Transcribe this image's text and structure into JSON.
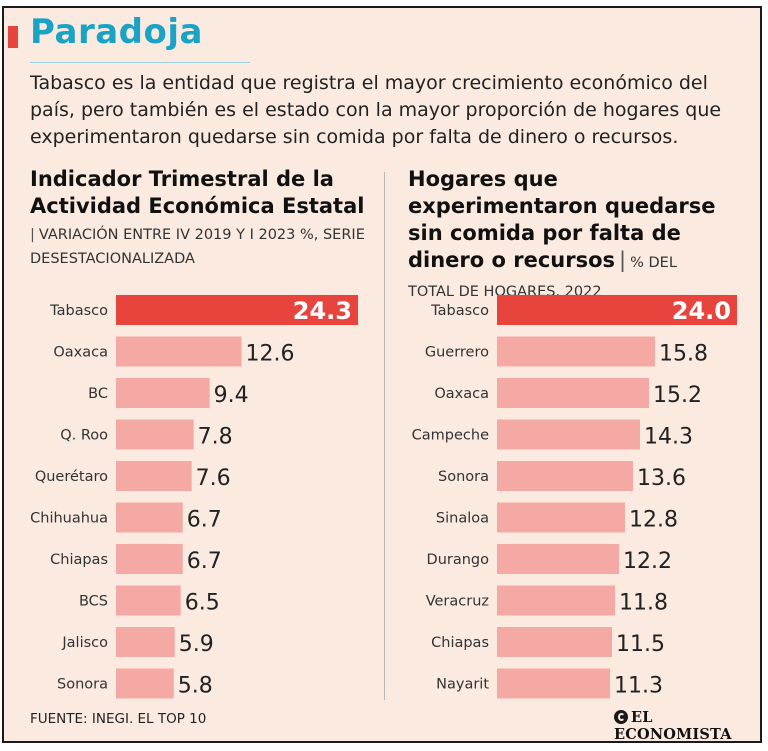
{
  "title": "Paradoja",
  "intro": "Tabasco es la entidad que registra el mayor crecimiento económico del país, pero también es el estado con la mayor proporción de hogares que experimentaron quedarse sin comida por falta de dinero o recursos.",
  "left": {
    "title": "Indicador Trimestral de la Actividad Económica Estatal",
    "subtitle": "Variación entre IV 2019 y I 2023 %, serie desestacionalizada"
  },
  "right": {
    "title": "Hogares que experimentaron quedarse sin comida por falta de dinero o recursos",
    "subtitle_inline": "% del",
    "subtitle": "total de hogares, 2022"
  },
  "footer": "FUENTE: INEGI. EL TOP 10",
  "brand": "EL ECONOMISTA",
  "colors": {
    "highlight": "#e8443e",
    "bar": "#f4a9a4",
    "title": "#1ba3c6"
  },
  "chart_data": [
    {
      "type": "bar",
      "orientation": "horizontal",
      "title": "Indicador Trimestral de la Actividad Económica Estatal",
      "subtitle": "Variación entre IV 2019 y I 2023 %, serie desestacionalizada",
      "categories": [
        "Tabasco",
        "Oaxaca",
        "BC",
        "Q. Roo",
        "Querétaro",
        "Chihuahua",
        "Chiapas",
        "BCS",
        "Jalisco",
        "Sonora"
      ],
      "values": [
        24.3,
        12.6,
        9.4,
        7.8,
        7.6,
        6.7,
        6.7,
        6.5,
        5.9,
        5.8
      ],
      "labels": [
        "24.3",
        "12.6",
        "9.4",
        "7.8",
        "7.6",
        "6.7",
        "6.7",
        "6.5",
        "5.9",
        "5.8"
      ],
      "highlight_index": 0
    },
    {
      "type": "bar",
      "orientation": "horizontal",
      "title": "Hogares que experimentaron quedarse sin comida por falta de dinero o recursos",
      "subtitle": "% del total de hogares, 2022",
      "categories": [
        "Tabasco",
        "Guerrero",
        "Oaxaca",
        "Campeche",
        "Sonora",
        "Sinaloa",
        "Durango",
        "Veracruz",
        "Chiapas",
        "Nayarit"
      ],
      "values": [
        24.0,
        15.8,
        15.2,
        14.3,
        13.6,
        12.8,
        12.2,
        11.8,
        11.5,
        11.3
      ],
      "labels": [
        "24.0",
        "15.8",
        "15.2",
        "14.3",
        "13.6",
        "12.8",
        "12.2",
        "11.8",
        "11.5",
        "11.3"
      ],
      "highlight_index": 0
    }
  ]
}
